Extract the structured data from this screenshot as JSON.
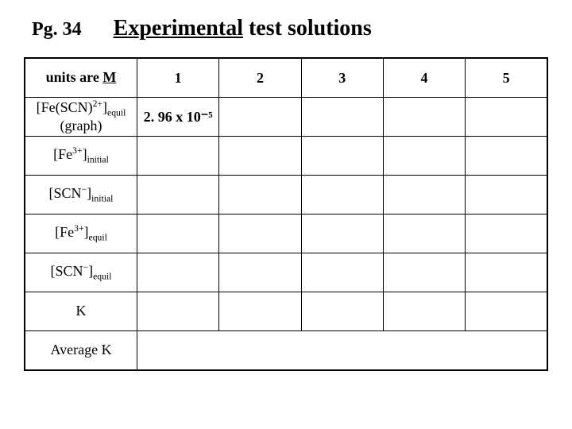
{
  "header": {
    "page_ref": "Pg. 34",
    "title_underlined": "Experimental",
    "title_rest": " test solutions"
  },
  "table": {
    "col_header_label_pre": "units are ",
    "col_header_label_under": "M",
    "columns": [
      "1",
      "2",
      "3",
      "4",
      "5"
    ],
    "rows": [
      {
        "label_html": "[Fe(SCN)<sup>2+</sup>]<sub>equil</sub><br>(graph)",
        "cells": [
          "2. 96 x 10⁻⁵",
          "",
          "",
          "",
          ""
        ],
        "bold_cells": [
          true,
          false,
          false,
          false,
          false
        ]
      },
      {
        "label_html": "[Fe<sup>3+</sup>]<sub>initial</sub>",
        "cells": [
          "",
          "",
          "",
          "",
          ""
        ]
      },
      {
        "label_html": "[SCN<sup>−</sup>]<sub>initial</sub>",
        "cells": [
          "",
          "",
          "",
          "",
          ""
        ]
      },
      {
        "label_html": "[Fe<sup>3+</sup>]<sub>equil</sub>",
        "cells": [
          "",
          "",
          "",
          "",
          ""
        ]
      },
      {
        "label_html": "[SCN<sup>−</sup>]<sub>equil</sub>",
        "cells": [
          "",
          "",
          "",
          "",
          ""
        ]
      },
      {
        "label_html": "K",
        "cells": [
          "",
          "",
          "",
          "",
          ""
        ]
      }
    ],
    "average_row_label": "Average K"
  },
  "style": {
    "font_family": "Times New Roman",
    "title_fontsize": 28,
    "page_ref_fontsize": 24,
    "cell_fontsize": 18,
    "border_color": "#000000",
    "background": "#ffffff"
  }
}
